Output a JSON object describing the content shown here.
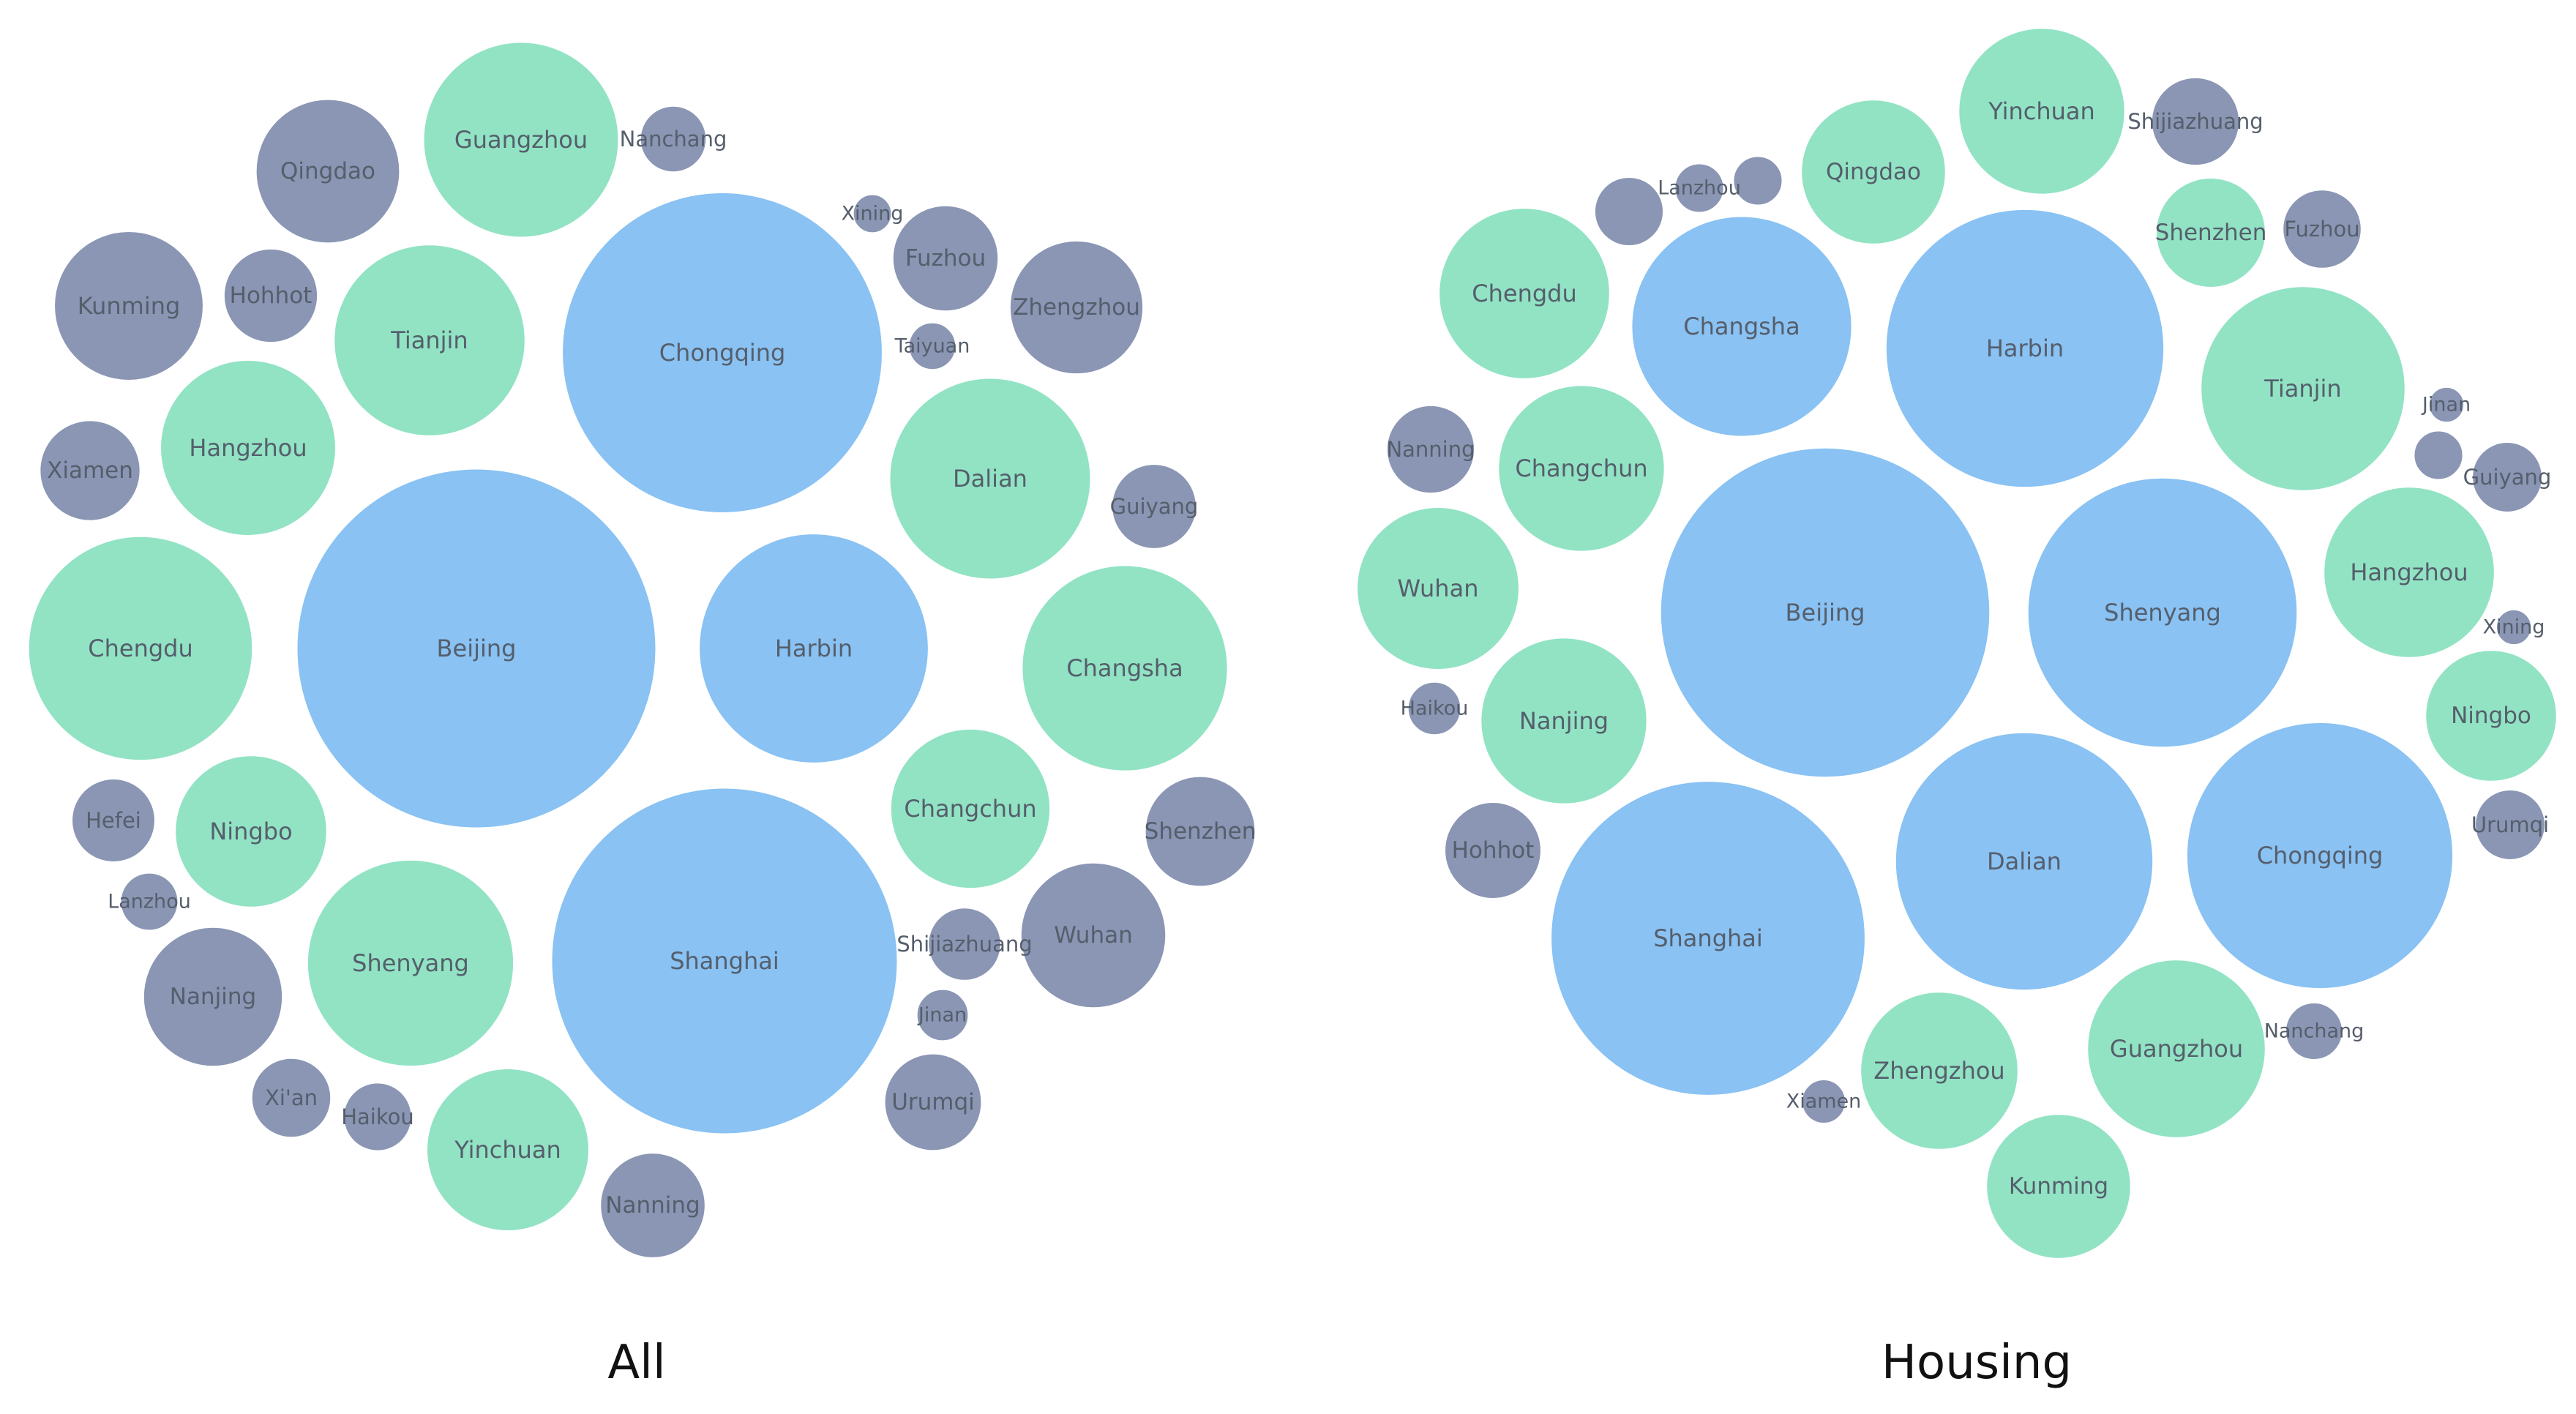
{
  "colors": {
    "tier1": "#89c2f3",
    "tier2": "#91e3c4",
    "tier3": "#8a96b4",
    "label": "#555e6b"
  },
  "chart_data": [
    {
      "type": "bubble",
      "title": "All",
      "bubbles": [
        {
          "name": "Beijing",
          "tier": 1,
          "size": 54.5
        },
        {
          "name": "Shanghai",
          "tier": 1,
          "size": 52.5
        },
        {
          "name": "Chongqing",
          "tier": 1,
          "size": 48.6
        },
        {
          "name": "Harbin",
          "tier": 1,
          "size": 34.8
        },
        {
          "name": "Chengdu",
          "tier": 2,
          "size": 34.0
        },
        {
          "name": "Changsha",
          "tier": 2,
          "size": 31.2
        },
        {
          "name": "Dalian",
          "tier": 2,
          "size": 30.5
        },
        {
          "name": "Shenyang",
          "tier": 2,
          "size": 31.3
        },
        {
          "name": "Guangzhou",
          "tier": 2,
          "size": 29.6
        },
        {
          "name": "Tianjin",
          "tier": 2,
          "size": 29.0
        },
        {
          "name": "Hangzhou",
          "tier": 2,
          "size": 26.6
        },
        {
          "name": "Changchun",
          "tier": 2,
          "size": 24.2
        },
        {
          "name": "Yinchuan",
          "tier": 2,
          "size": 24.6
        },
        {
          "name": "Ningbo",
          "tier": 2,
          "size": 23.0
        },
        {
          "name": "Kunming",
          "tier": 3,
          "size": 22.6
        },
        {
          "name": "Qingdao",
          "tier": 3,
          "size": 21.8
        },
        {
          "name": "Wuhan",
          "tier": 3,
          "size": 22.0
        },
        {
          "name": "Nanjing",
          "tier": 3,
          "size": 21.1
        },
        {
          "name": "Zhengzhou",
          "tier": 3,
          "size": 20.2
        },
        {
          "name": "Shenzhen",
          "tier": 3,
          "size": 16.7
        },
        {
          "name": "Fuzhou",
          "tier": 3,
          "size": 16.0
        },
        {
          "name": "Nanning",
          "tier": 3,
          "size": 15.9
        },
        {
          "name": "Xiamen",
          "tier": 3,
          "size": 15.2
        },
        {
          "name": "Urumqi",
          "tier": 3,
          "size": 14.7
        },
        {
          "name": "Hohhot",
          "tier": 3,
          "size": 14.2
        },
        {
          "name": "Guiyang",
          "tier": 3,
          "size": 12.8
        },
        {
          "name": "Hefei",
          "tier": 3,
          "size": 12.6
        },
        {
          "name": "Xi'an",
          "tier": 3,
          "size": 12.0
        },
        {
          "name": "Shijiazhuang",
          "tier": 3,
          "size": 11.0
        },
        {
          "name": "Haikou",
          "tier": 3,
          "size": 10.3
        },
        {
          "name": "Nanchang",
          "tier": 3,
          "size": 10.0
        },
        {
          "name": "Lanzhou",
          "tier": 3,
          "size": 8.7
        },
        {
          "name": "Jinan",
          "tier": 3,
          "size": 7.8
        },
        {
          "name": "Taiyuan",
          "tier": 3,
          "size": 7.1
        },
        {
          "name": "Xining",
          "tier": 3,
          "size": 5.8
        }
      ]
    },
    {
      "type": "bubble",
      "title": "Housing",
      "bubbles": [
        {
          "name": "Beijing",
          "tier": 1,
          "size": 50.0
        },
        {
          "name": "Shanghai",
          "tier": 1,
          "size": 47.7
        },
        {
          "name": "Harbin",
          "tier": 1,
          "size": 42.2
        },
        {
          "name": "Shenyang",
          "tier": 1,
          "size": 40.9
        },
        {
          "name": "Chongqing",
          "tier": 1,
          "size": 40.4
        },
        {
          "name": "Dalian",
          "tier": 1,
          "size": 39.1
        },
        {
          "name": "Changsha",
          "tier": 1,
          "size": 33.4
        },
        {
          "name": "Tianjin",
          "tier": 2,
          "size": 31.0
        },
        {
          "name": "Guangzhou",
          "tier": 2,
          "size": 27.0
        },
        {
          "name": "Zhengzhou",
          "tier": 2,
          "size": 23.9
        },
        {
          "name": "Chengdu",
          "tier": 2,
          "size": 25.9
        },
        {
          "name": "Yinchuan",
          "tier": 2,
          "size": 25.2
        },
        {
          "name": "Changchun",
          "tier": 2,
          "size": 25.2
        },
        {
          "name": "Nanjing",
          "tier": 2,
          "size": 25.2
        },
        {
          "name": "Hangzhou",
          "tier": 2,
          "size": 25.9
        },
        {
          "name": "Wuhan",
          "tier": 2,
          "size": 24.6
        },
        {
          "name": "Kunming",
          "tier": 2,
          "size": 21.9
        },
        {
          "name": "Qingdao",
          "tier": 2,
          "size": 21.9
        },
        {
          "name": "Ningbo",
          "tier": 2,
          "size": 19.9
        },
        {
          "name": "Shenzhen",
          "tier": 2,
          "size": 16.6
        },
        {
          "name": "Hohhot",
          "tier": 3,
          "size": 14.6
        },
        {
          "name": "Nanning",
          "tier": 3,
          "size": 13.3
        },
        {
          "name": "Shijiazhuang",
          "tier": 3,
          "size": 13.3
        },
        {
          "name": "Fuzhou",
          "tier": 3,
          "size": 11.9
        },
        {
          "name": "Guiyang",
          "tier": 3,
          "size": 10.6
        },
        {
          "name": "Urumqi",
          "tier": 3,
          "size": 10.6
        },
        {
          "name": "Nanchang",
          "tier": 3,
          "size": 8.6
        },
        {
          "name": "Haikou",
          "tier": 3,
          "size": 8.0
        },
        {
          "name": "Lanzhou",
          "tier": 3,
          "size": 7.4
        },
        {
          "name": "Xiamen",
          "tier": 3,
          "size": 6.6
        },
        {
          "name": "Jinan",
          "tier": 3,
          "size": 5.3
        },
        {
          "name": "Xining",
          "tier": 3,
          "size": 5.3
        }
      ],
      "unlabeled_bubbles": [
        {
          "tier": 3,
          "size": 10.4
        },
        {
          "tier": 3,
          "size": 7.4
        },
        {
          "tier": 3,
          "size": 7.4
        }
      ]
    }
  ]
}
